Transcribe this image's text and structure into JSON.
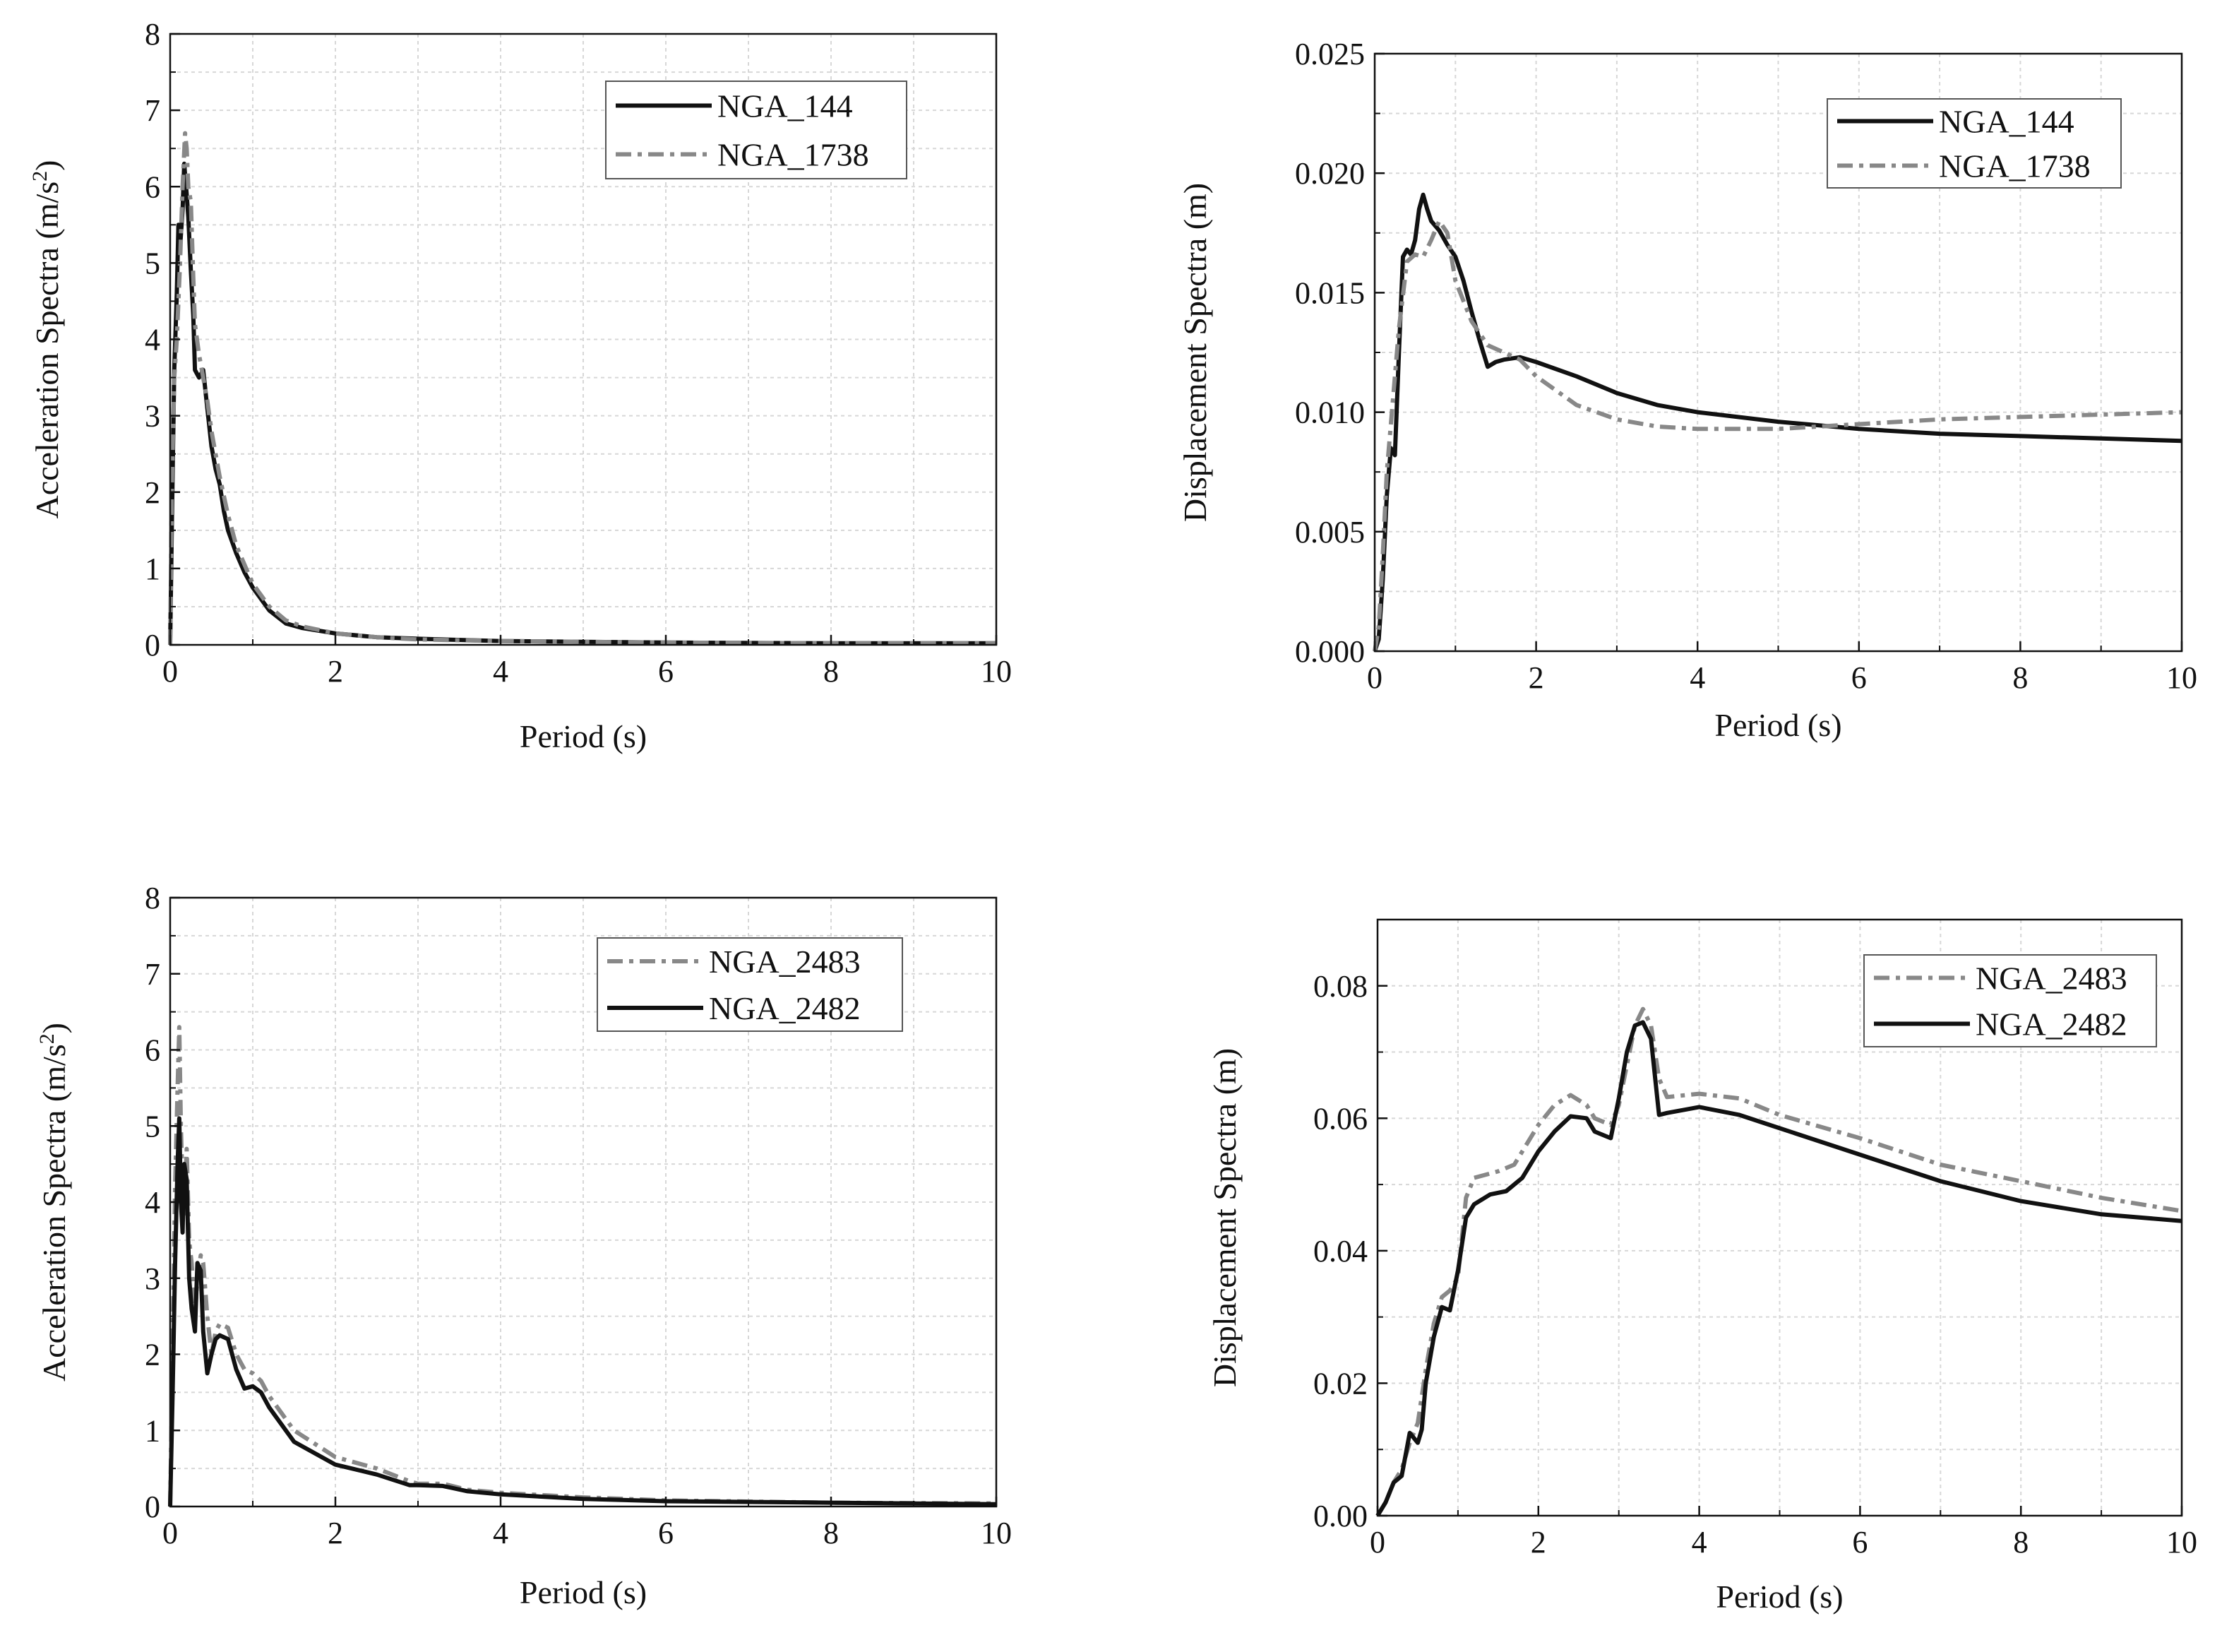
{
  "colors": {
    "black": "#111111",
    "gray": "#888888",
    "grid": "#d7d7d7"
  },
  "chart_data": [
    {
      "id": "acc-top",
      "type": "line",
      "title": "",
      "xlabel": "Period (s)",
      "ylabel_main": "Acceleration Spectra (m/s",
      "ylabel_sup": "2",
      "ylabel_tail": ")",
      "xlim": [
        0,
        10
      ],
      "ylim": [
        0,
        8
      ],
      "xticks": [
        0,
        2,
        4,
        6,
        8,
        10
      ],
      "yticks": [
        0,
        1,
        2,
        3,
        4,
        5,
        6,
        7,
        8
      ],
      "xtick_labels": [
        "0",
        "2",
        "4",
        "6",
        "8",
        "10"
      ],
      "ytick_labels": [
        "0",
        "1",
        "2",
        "3",
        "4",
        "5",
        "6",
        "7",
        "8"
      ],
      "grid": true,
      "legend_position": "top-right",
      "series": [
        {
          "name": "NGA_144",
          "style": "solid",
          "color": "#111111",
          "x": [
            0,
            0.02,
            0.05,
            0.08,
            0.1,
            0.12,
            0.15,
            0.17,
            0.2,
            0.22,
            0.25,
            0.28,
            0.3,
            0.35,
            0.4,
            0.45,
            0.5,
            0.55,
            0.6,
            0.65,
            0.7,
            0.8,
            0.9,
            1.0,
            1.2,
            1.4,
            1.6,
            2.0,
            2.5,
            3.0,
            4.0,
            5.0,
            6.0,
            8.0,
            10.0
          ],
          "y": [
            0,
            1.5,
            3.6,
            4.6,
            5.5,
            5.2,
            5.7,
            6.3,
            5.9,
            5.6,
            4.9,
            4.3,
            3.6,
            3.5,
            3.6,
            3.1,
            2.6,
            2.3,
            2.1,
            1.75,
            1.5,
            1.2,
            0.95,
            0.75,
            0.45,
            0.28,
            0.22,
            0.15,
            0.1,
            0.08,
            0.05,
            0.04,
            0.03,
            0.02,
            0.02
          ]
        },
        {
          "name": "NGA_1738",
          "style": "dashdot",
          "color": "#888888",
          "x": [
            0,
            0.02,
            0.05,
            0.08,
            0.1,
            0.12,
            0.15,
            0.18,
            0.2,
            0.22,
            0.25,
            0.28,
            0.3,
            0.35,
            0.4,
            0.45,
            0.5,
            0.6,
            0.7,
            0.8,
            1.0,
            1.2,
            1.4,
            1.6,
            2.0,
            2.5,
            3.0,
            4.0,
            6.0,
            8.0,
            10.0
          ],
          "y": [
            0,
            2.0,
            3.5,
            4.0,
            4.5,
            5.0,
            6.0,
            6.7,
            6.5,
            6.0,
            5.8,
            4.8,
            4.2,
            3.8,
            3.5,
            3.2,
            2.8,
            2.2,
            1.7,
            1.3,
            0.8,
            0.5,
            0.32,
            0.24,
            0.15,
            0.1,
            0.07,
            0.05,
            0.03,
            0.02,
            0.02
          ]
        }
      ]
    },
    {
      "id": "disp-top",
      "type": "line",
      "title": "",
      "xlabel": "Period (s)",
      "ylabel_main": "Displacement Spectra (m)",
      "ylabel_sup": "",
      "ylabel_tail": "",
      "xlim": [
        0,
        10
      ],
      "ylim": [
        0,
        0.025
      ],
      "xticks": [
        0,
        2,
        4,
        6,
        8,
        10
      ],
      "yticks": [
        0,
        0.005,
        0.01,
        0.015,
        0.02,
        0.025
      ],
      "xtick_labels": [
        "0",
        "2",
        "4",
        "6",
        "8",
        "10"
      ],
      "ytick_labels": [
        "0.000",
        "0.005",
        "0.010",
        "0.015",
        "0.020",
        "0.025"
      ],
      "grid": true,
      "legend_position": "top-right",
      "series": [
        {
          "name": "NGA_144",
          "style": "solid",
          "color": "#111111",
          "x": [
            0,
            0.05,
            0.1,
            0.15,
            0.2,
            0.25,
            0.3,
            0.35,
            0.4,
            0.45,
            0.5,
            0.55,
            0.6,
            0.65,
            0.7,
            0.8,
            0.9,
            1.0,
            1.1,
            1.2,
            1.3,
            1.4,
            1.5,
            1.6,
            1.8,
            2.0,
            2.5,
            3.0,
            3.5,
            4.0,
            5.0,
            6.0,
            7.0,
            8.0,
            9.0,
            10.0
          ],
          "y": [
            0,
            0.0005,
            0.003,
            0.0065,
            0.0085,
            0.0082,
            0.0125,
            0.0165,
            0.0168,
            0.0166,
            0.0172,
            0.0185,
            0.0191,
            0.0185,
            0.018,
            0.0176,
            0.017,
            0.0165,
            0.0155,
            0.0142,
            0.013,
            0.0119,
            0.0121,
            0.0122,
            0.0123,
            0.0121,
            0.0115,
            0.0108,
            0.0103,
            0.01,
            0.0096,
            0.0093,
            0.0091,
            0.009,
            0.0089,
            0.0088
          ]
        },
        {
          "name": "NGA_1738",
          "style": "dashdot",
          "color": "#888888",
          "x": [
            0,
            0.05,
            0.1,
            0.15,
            0.2,
            0.3,
            0.4,
            0.5,
            0.6,
            0.7,
            0.8,
            0.9,
            1.0,
            1.2,
            1.4,
            1.6,
            1.8,
            2.0,
            2.5,
            3.0,
            3.5,
            4.0,
            5.0,
            6.0,
            7.0,
            8.0,
            9.0,
            10.0
          ],
          "y": [
            0,
            0.001,
            0.004,
            0.0075,
            0.0095,
            0.0135,
            0.0163,
            0.0166,
            0.0165,
            0.0172,
            0.018,
            0.0175,
            0.0155,
            0.0138,
            0.0128,
            0.0125,
            0.0122,
            0.0115,
            0.0103,
            0.0097,
            0.0094,
            0.0093,
            0.0093,
            0.0095,
            0.0097,
            0.0098,
            0.0099,
            0.01
          ]
        }
      ]
    },
    {
      "id": "acc-bottom",
      "type": "line",
      "title": "",
      "xlabel": "Period (s)",
      "ylabel_main": "Acceleration Spectra (m/s",
      "ylabel_sup": "2",
      "ylabel_tail": ")",
      "xlim": [
        0,
        10
      ],
      "ylim": [
        0,
        8
      ],
      "xticks": [
        0,
        2,
        4,
        6,
        8,
        10
      ],
      "yticks": [
        0,
        1,
        2,
        3,
        4,
        5,
        6,
        7,
        8
      ],
      "xtick_labels": [
        "0",
        "2",
        "4",
        "6",
        "8",
        "10"
      ],
      "ytick_labels": [
        "0",
        "1",
        "2",
        "3",
        "4",
        "5",
        "6",
        "7",
        "8"
      ],
      "grid": true,
      "legend_position": "top-right",
      "series": [
        {
          "name": "NGA_2483",
          "style": "dashdot",
          "color": "#888888",
          "x": [
            0,
            0.03,
            0.06,
            0.09,
            0.11,
            0.13,
            0.15,
            0.17,
            0.2,
            0.23,
            0.26,
            0.3,
            0.33,
            0.37,
            0.4,
            0.45,
            0.5,
            0.55,
            0.6,
            0.7,
            0.8,
            0.9,
            1.0,
            1.1,
            1.2,
            1.5,
            2.0,
            2.5,
            2.9,
            3.0,
            3.3,
            3.6,
            4.0,
            5.0,
            6.0,
            8.0,
            10.0
          ],
          "y": [
            0,
            2.0,
            4.2,
            5.5,
            6.3,
            5.0,
            4.2,
            3.8,
            4.7,
            3.5,
            3.2,
            2.5,
            3.0,
            3.3,
            3.2,
            2.5,
            2.0,
            2.3,
            2.4,
            2.35,
            2.0,
            1.8,
            1.75,
            1.65,
            1.45,
            1.0,
            0.65,
            0.5,
            0.33,
            0.3,
            0.3,
            0.22,
            0.18,
            0.12,
            0.08,
            0.05,
            0.04
          ]
        },
        {
          "name": "NGA_2482",
          "style": "solid",
          "color": "#111111",
          "x": [
            0,
            0.03,
            0.06,
            0.09,
            0.11,
            0.13,
            0.15,
            0.17,
            0.2,
            0.23,
            0.26,
            0.3,
            0.33,
            0.37,
            0.4,
            0.45,
            0.5,
            0.55,
            0.6,
            0.7,
            0.8,
            0.9,
            1.0,
            1.1,
            1.2,
            1.5,
            2.0,
            2.5,
            2.9,
            3.0,
            3.3,
            3.6,
            4.0,
            5.0,
            6.0,
            8.0,
            10.0
          ],
          "y": [
            0,
            1.5,
            3.2,
            4.5,
            5.1,
            4.0,
            3.6,
            4.5,
            4.3,
            3.0,
            2.6,
            2.3,
            3.2,
            3.1,
            2.3,
            1.75,
            2.0,
            2.2,
            2.25,
            2.2,
            1.8,
            1.55,
            1.58,
            1.5,
            1.3,
            0.85,
            0.55,
            0.42,
            0.28,
            0.28,
            0.27,
            0.2,
            0.16,
            0.1,
            0.07,
            0.05,
            0.03
          ]
        }
      ]
    },
    {
      "id": "disp-bottom",
      "type": "line",
      "title": "",
      "xlabel": "Period (s)",
      "ylabel_main": "Displacement Spectra (m)",
      "ylabel_sup": "",
      "ylabel_tail": "",
      "xlim": [
        0,
        10
      ],
      "ylim": [
        0,
        0.09
      ],
      "xticks": [
        0,
        2,
        4,
        6,
        8,
        10
      ],
      "yticks": [
        0,
        0.02,
        0.04,
        0.06,
        0.08
      ],
      "xtick_labels": [
        "0",
        "2",
        "4",
        "6",
        "8",
        "10"
      ],
      "ytick_labels": [
        "0.00",
        "0.02",
        "0.04",
        "0.06",
        "0.08"
      ],
      "grid": true,
      "legend_position": "top-right",
      "series": [
        {
          "name": "NGA_2483",
          "style": "dashdot",
          "color": "#888888",
          "x": [
            0,
            0.1,
            0.2,
            0.3,
            0.4,
            0.5,
            0.6,
            0.7,
            0.8,
            0.9,
            1.0,
            1.1,
            1.2,
            1.5,
            1.7,
            2.0,
            2.2,
            2.4,
            2.6,
            2.7,
            2.9,
            3.0,
            3.1,
            3.2,
            3.3,
            3.4,
            3.5,
            3.6,
            4.0,
            4.5,
            5.0,
            6.0,
            7.0,
            8.0,
            9.0,
            10.0
          ],
          "y": [
            0,
            0.002,
            0.005,
            0.007,
            0.011,
            0.014,
            0.022,
            0.029,
            0.033,
            0.034,
            0.036,
            0.048,
            0.051,
            0.052,
            0.053,
            0.059,
            0.062,
            0.0635,
            0.062,
            0.06,
            0.059,
            0.062,
            0.068,
            0.074,
            0.0765,
            0.074,
            0.066,
            0.0632,
            0.0637,
            0.063,
            0.0605,
            0.057,
            0.053,
            0.0505,
            0.048,
            0.046
          ]
        },
        {
          "name": "NGA_2482",
          "style": "solid",
          "color": "#111111",
          "x": [
            0,
            0.1,
            0.2,
            0.3,
            0.4,
            0.5,
            0.55,
            0.6,
            0.7,
            0.8,
            0.9,
            1.0,
            1.1,
            1.2,
            1.4,
            1.6,
            1.8,
            2.0,
            2.2,
            2.4,
            2.6,
            2.7,
            2.9,
            3.0,
            3.1,
            3.2,
            3.3,
            3.4,
            3.5,
            3.6,
            4.0,
            4.5,
            5.0,
            6.0,
            7.0,
            8.0,
            9.0,
            10.0
          ],
          "y": [
            0,
            0.002,
            0.005,
            0.006,
            0.0125,
            0.011,
            0.013,
            0.02,
            0.027,
            0.0315,
            0.031,
            0.037,
            0.045,
            0.047,
            0.0485,
            0.049,
            0.051,
            0.055,
            0.058,
            0.0603,
            0.06,
            0.058,
            0.057,
            0.063,
            0.07,
            0.074,
            0.0745,
            0.072,
            0.0605,
            0.0608,
            0.0617,
            0.0605,
            0.0585,
            0.0545,
            0.0505,
            0.0475,
            0.0455,
            0.0445
          ]
        }
      ]
    }
  ]
}
